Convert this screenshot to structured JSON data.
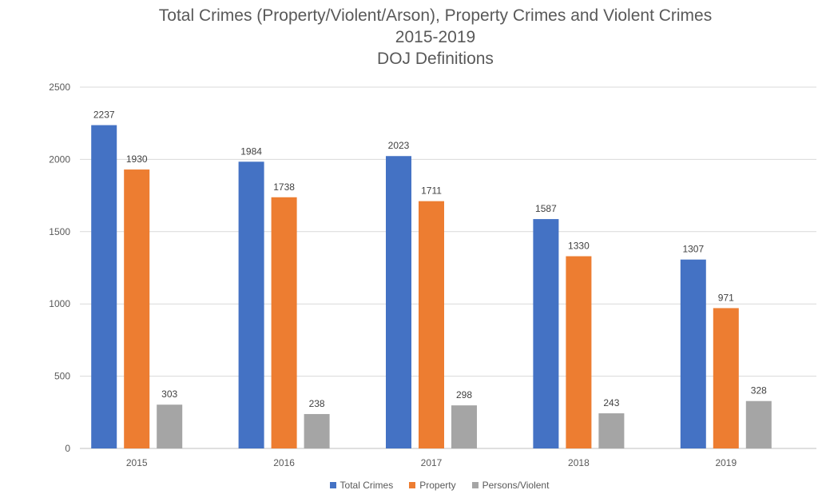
{
  "chart_data": {
    "type": "bar",
    "title_lines": [
      "Total Crimes (Property/Violent/Arson), Property Crimes and Violent Crimes",
      "2015-2019",
      "DOJ Definitions"
    ],
    "categories": [
      "2015",
      "2016",
      "2017",
      "2018",
      "2019"
    ],
    "series": [
      {
        "name": "Total Crimes",
        "color": "#4472C4",
        "values": [
          2237,
          1984,
          2023,
          1587,
          1307
        ]
      },
      {
        "name": "Property",
        "color": "#ED7D31",
        "values": [
          1930,
          1738,
          1711,
          1330,
          971
        ]
      },
      {
        "name": "Persons/Violent",
        "color": "#A5A5A5",
        "values": [
          303,
          238,
          298,
          243,
          328
        ]
      }
    ],
    "ylim": [
      0,
      2500
    ],
    "yticks": [
      0,
      500,
      1000,
      1500,
      2000,
      2500
    ],
    "grid": true,
    "legend_position": "bottom",
    "xlabel": "",
    "ylabel": ""
  }
}
